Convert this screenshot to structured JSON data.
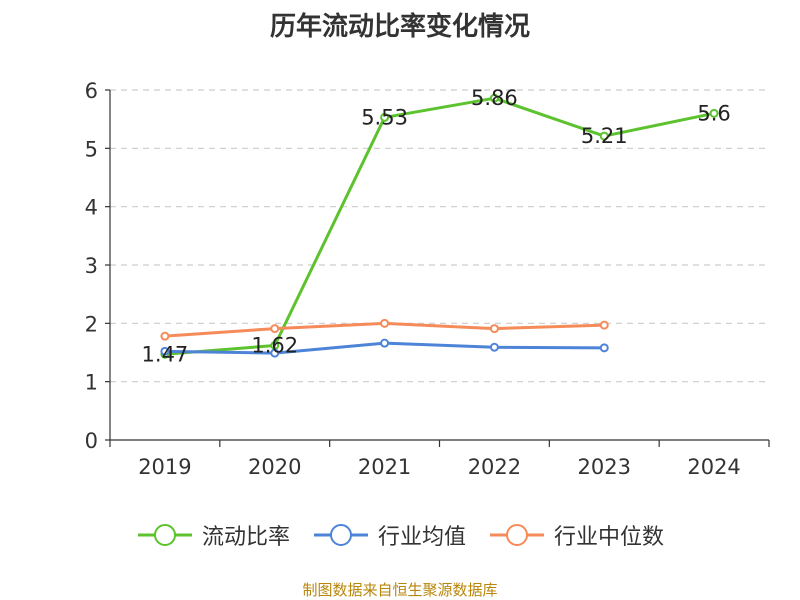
{
  "title": "历年流动比率变化情况",
  "source": "制图数据来自恒生聚源数据库",
  "chart_data": {
    "type": "line",
    "title": "历年流动比率变化情况",
    "categories": [
      "2019",
      "2020",
      "2021",
      "2022",
      "2023",
      "2024"
    ],
    "ylim": [
      0,
      6
    ],
    "yticks": [
      "0",
      "1",
      "2",
      "3",
      "4",
      "5",
      "6"
    ],
    "grid": true,
    "legend_position": "bottom",
    "series": [
      {
        "name": "流动比率",
        "color": "#5cc22d",
        "values": [
          1.47,
          1.62,
          5.53,
          5.86,
          5.21,
          5.6
        ],
        "labels": [
          "1.47",
          "1.62",
          "5.53",
          "5.86",
          "5.21",
          "5.6"
        ]
      },
      {
        "name": "行业均值",
        "color": "#4d84d8",
        "values": [
          1.52,
          1.49,
          1.66,
          1.59,
          1.58,
          null
        ]
      },
      {
        "name": "行业中位数",
        "color": "#f68b5a",
        "values": [
          1.78,
          1.91,
          2.0,
          1.91,
          1.97,
          null
        ]
      }
    ]
  }
}
